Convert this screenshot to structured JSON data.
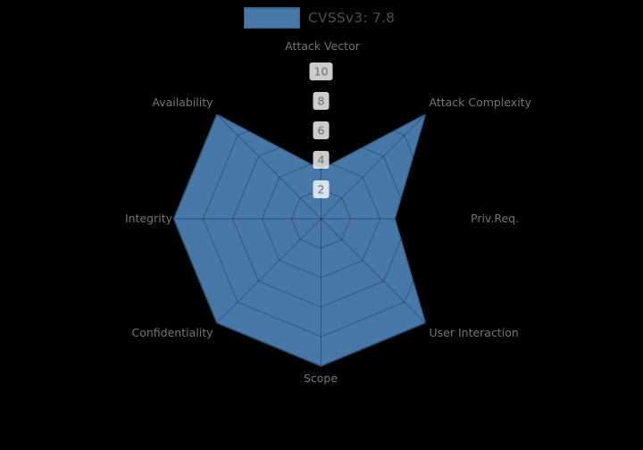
{
  "legend": {
    "label": "CVSSv3: 7.8",
    "swatch_fill": "#4878A8",
    "swatch_border": "#36648B",
    "text_color": "#4d4d4d"
  },
  "chart_data": {
    "type": "radar",
    "categories": [
      "Attack Vector",
      "Attack Complexity",
      "Priv.Req.",
      "User Interaction",
      "Scope",
      "Confidentiality",
      "Integrity",
      "Availability"
    ],
    "series": [
      {
        "name": "CVSSv3: 7.8",
        "values": [
          3.33,
          10,
          5,
          10,
          10,
          10,
          10,
          10
        ]
      }
    ],
    "radial_ticks": [
      2,
      4,
      6,
      8,
      10
    ],
    "rlim": [
      0,
      10
    ],
    "grid": true,
    "legend_position": "top-center",
    "colors": {
      "background": "#000000",
      "fill": "#4878A8",
      "edge": "#36648B",
      "grid_line": "rgba(0,0,0,0.28)",
      "axis_label": "#757575",
      "tick_label": "#6e6e6e",
      "tick_box": "rgba(255,255,255,0.8)"
    }
  }
}
